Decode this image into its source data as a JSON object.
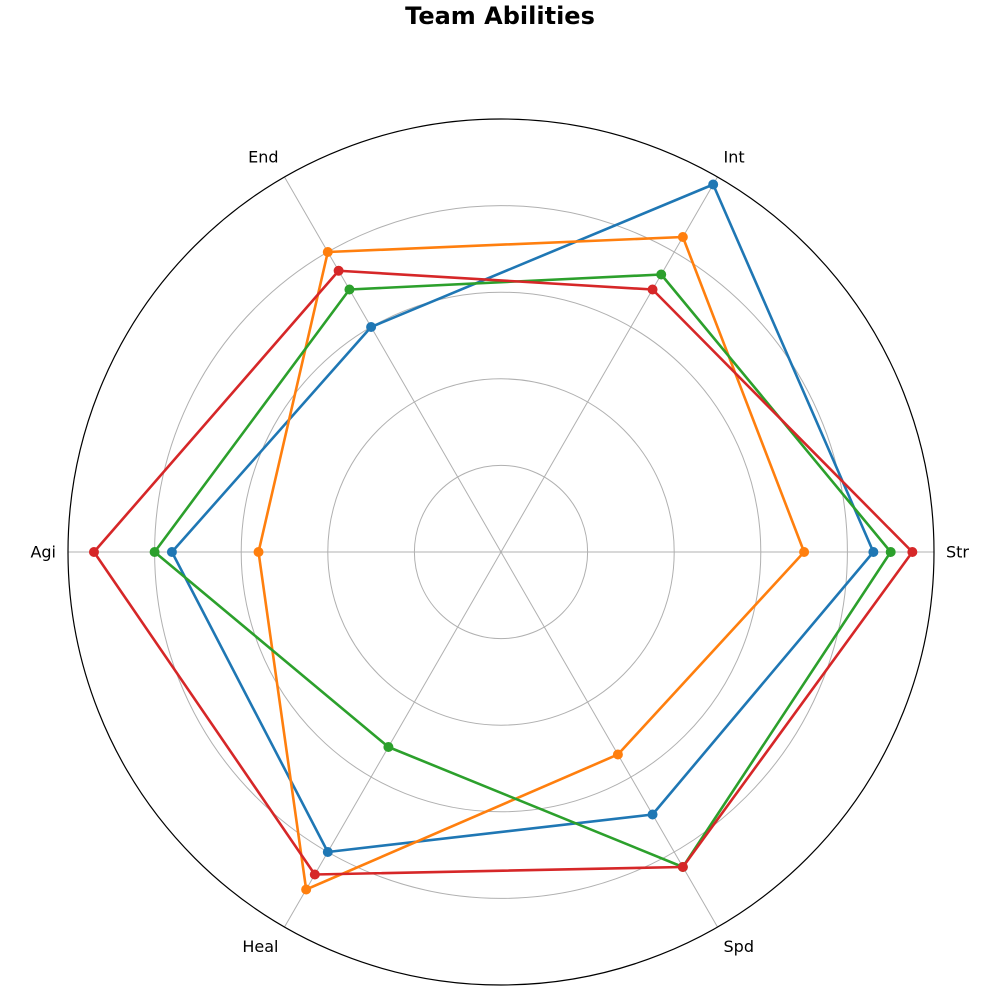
{
  "chart_data": {
    "type": "radar",
    "title": "Team Abilities",
    "axes": [
      "Str",
      "Spd",
      "Heal",
      "Agi",
      "End",
      "Int"
    ],
    "rmax": 5,
    "grid_levels": [
      1,
      2,
      3,
      4
    ],
    "grid": true,
    "series": [
      {
        "color": "#1f77b4",
        "values": [
          4.3,
          3.5,
          4.0,
          3.8,
          3.0,
          4.9
        ]
      },
      {
        "color": "#ff7f0e",
        "values": [
          3.5,
          2.7,
          4.5,
          2.8,
          4.0,
          4.2
        ]
      },
      {
        "color": "#2ca02c",
        "values": [
          4.5,
          4.2,
          2.6,
          4.0,
          3.5,
          3.7
        ]
      },
      {
        "color": "#d62728",
        "values": [
          4.75,
          4.2,
          4.3,
          4.7,
          3.75,
          3.5
        ]
      }
    ]
  }
}
